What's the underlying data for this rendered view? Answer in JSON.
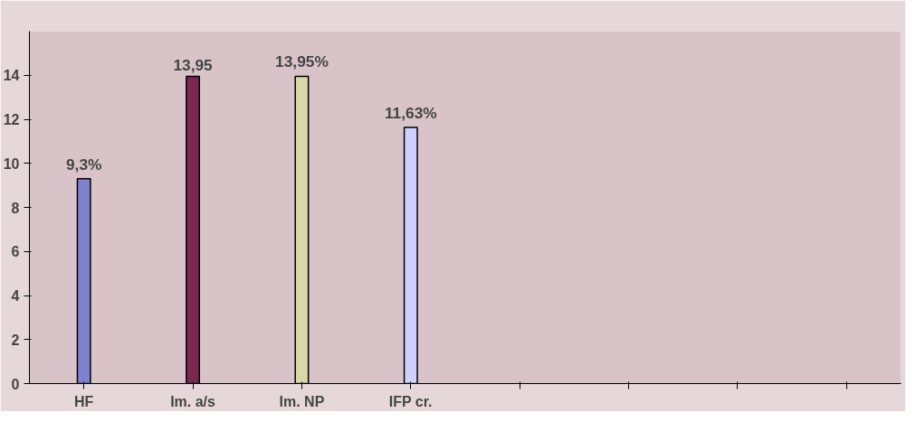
{
  "chart_data": {
    "type": "bar",
    "categories": [
      "HF",
      "Im. a/s",
      "Im. NP",
      "IFP cr.",
      null,
      null,
      null,
      null
    ],
    "values": [
      9.3,
      13.95,
      13.95,
      11.63,
      null,
      null,
      null,
      null
    ],
    "colors": [
      "#8080d0",
      "#7a2850",
      "#d8d8a8",
      "#d0d0ff",
      "#808080",
      "#808080",
      "#808080",
      "#808080"
    ],
    "value_labels": [
      "9,3%",
      "13,95",
      "13,95%",
      "11,63%",
      null,
      null,
      null,
      null
    ],
    "ylim": [
      0,
      16
    ],
    "yticks": [
      0,
      2,
      4,
      6,
      8,
      10,
      12,
      14
    ],
    "grid": false
  }
}
